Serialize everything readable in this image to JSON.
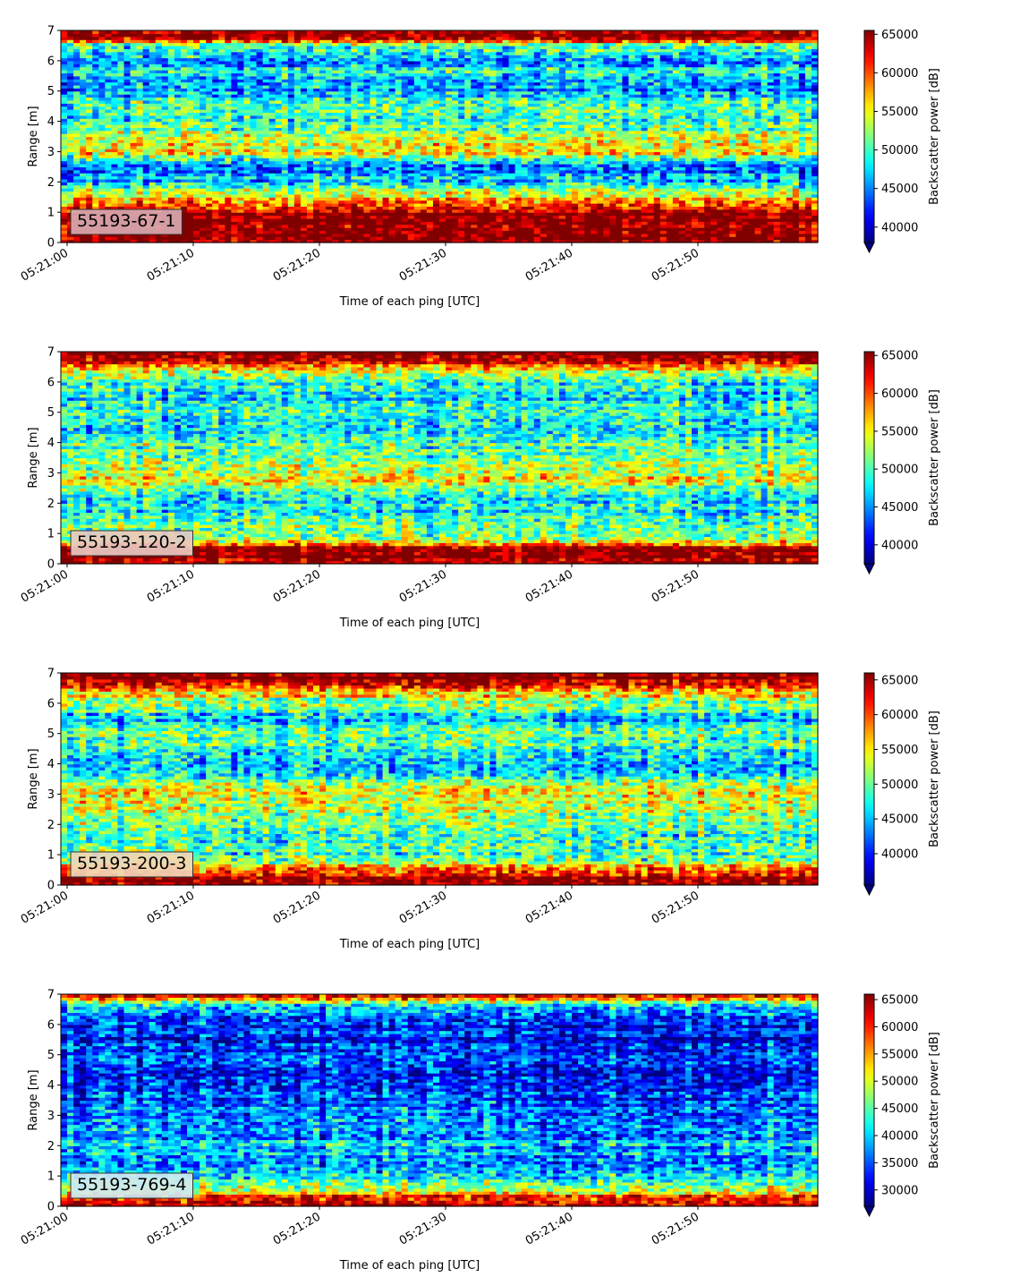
{
  "chart_data": [
    {
      "type": "heatmap",
      "label": "55193-67-1",
      "xlabel": "Time of each ping [UTC]",
      "ylabel": "Range [m]",
      "colorbar_label": "Backscatter power [dB]",
      "colormap": "jet",
      "x_start": "05:21:00",
      "x_end": "05:21:59",
      "x_ticks": [
        "05:21:00",
        "05:21:10",
        "05:21:20",
        "05:21:30",
        "05:21:40",
        "05:21:50"
      ],
      "y_ticks": [
        0,
        1,
        2,
        3,
        4,
        5,
        6,
        7
      ],
      "ylim": [
        0,
        7
      ],
      "clim": [
        38000,
        65500
      ],
      "colorbar_ticks": [
        40000,
        45000,
        50000,
        55000,
        60000,
        65000
      ],
      "colorbar_extend": "min",
      "label_box_color": "#d8a9b0",
      "profile": [
        {
          "range": 0.0,
          "value": 65500
        },
        {
          "range": 1.0,
          "value": 65500
        },
        {
          "range": 1.3,
          "value": 60000
        },
        {
          "range": 1.6,
          "value": 54000
        },
        {
          "range": 2.0,
          "value": 47500
        },
        {
          "range": 2.5,
          "value": 44000
        },
        {
          "range": 3.0,
          "value": 56000
        },
        {
          "range": 3.5,
          "value": 53000
        },
        {
          "range": 4.0,
          "value": 49000
        },
        {
          "range": 4.5,
          "value": 50000
        },
        {
          "range": 5.0,
          "value": 46000
        },
        {
          "range": 5.5,
          "value": 48000
        },
        {
          "range": 6.0,
          "value": 46000
        },
        {
          "range": 6.5,
          "value": 50000
        },
        {
          "range": 6.8,
          "value": 65500
        },
        {
          "range": 7.0,
          "value": 65500
        }
      ]
    },
    {
      "type": "heatmap",
      "label": "55193-120-2",
      "xlabel": "Time of each ping [UTC]",
      "ylabel": "Range [m]",
      "colorbar_label": "Backscatter power [dB]",
      "colormap": "jet",
      "x_start": "05:21:00",
      "x_end": "05:21:59",
      "x_ticks": [
        "05:21:00",
        "05:21:10",
        "05:21:20",
        "05:21:30",
        "05:21:40",
        "05:21:50"
      ],
      "y_ticks": [
        0,
        1,
        2,
        3,
        4,
        5,
        6,
        7
      ],
      "ylim": [
        0,
        7
      ],
      "clim": [
        37500,
        65500
      ],
      "colorbar_ticks": [
        40000,
        45000,
        50000,
        55000,
        60000,
        65000
      ],
      "colorbar_extend": "min",
      "label_box_color": "#e8c9c2",
      "profile": [
        {
          "range": 0.0,
          "value": 65500
        },
        {
          "range": 0.5,
          "value": 65500
        },
        {
          "range": 0.8,
          "value": 52000
        },
        {
          "range": 1.5,
          "value": 49000
        },
        {
          "range": 2.0,
          "value": 47000
        },
        {
          "range": 2.5,
          "value": 52000
        },
        {
          "range": 3.0,
          "value": 55000
        },
        {
          "range": 3.5,
          "value": 50000
        },
        {
          "range": 4.0,
          "value": 51000
        },
        {
          "range": 4.5,
          "value": 45500
        },
        {
          "range": 5.0,
          "value": 51000
        },
        {
          "range": 5.5,
          "value": 46500
        },
        {
          "range": 6.0,
          "value": 48000
        },
        {
          "range": 6.5,
          "value": 56000
        },
        {
          "range": 6.8,
          "value": 65500
        },
        {
          "range": 7.0,
          "value": 65500
        }
      ]
    },
    {
      "type": "heatmap",
      "label": "55193-200-3",
      "xlabel": "Time of each ping [UTC]",
      "ylabel": "Range [m]",
      "colorbar_label": "Backscatter power [dB]",
      "colormap": "jet",
      "x_start": "05:21:00",
      "x_end": "05:21:59",
      "x_ticks": [
        "05:21:00",
        "05:21:10",
        "05:21:20",
        "05:21:30",
        "05:21:40",
        "05:21:50"
      ],
      "y_ticks": [
        0,
        1,
        2,
        3,
        4,
        5,
        6,
        7
      ],
      "ylim": [
        0,
        7
      ],
      "clim": [
        35500,
        66000
      ],
      "colorbar_ticks": [
        40000,
        45000,
        50000,
        55000,
        60000,
        65000
      ],
      "colorbar_extend": "min",
      "label_box_color": "#f0d6b8",
      "profile": [
        {
          "range": 0.0,
          "value": 66000
        },
        {
          "range": 0.4,
          "value": 63000
        },
        {
          "range": 0.8,
          "value": 50000
        },
        {
          "range": 1.5,
          "value": 48000
        },
        {
          "range": 2.0,
          "value": 50000
        },
        {
          "range": 2.5,
          "value": 52000
        },
        {
          "range": 3.0,
          "value": 54500
        },
        {
          "range": 3.5,
          "value": 49000
        },
        {
          "range": 4.0,
          "value": 44500
        },
        {
          "range": 4.5,
          "value": 48500
        },
        {
          "range": 5.0,
          "value": 50000
        },
        {
          "range": 5.5,
          "value": 45500
        },
        {
          "range": 6.0,
          "value": 51000
        },
        {
          "range": 6.5,
          "value": 58000
        },
        {
          "range": 6.8,
          "value": 66000
        },
        {
          "range": 7.0,
          "value": 66000
        }
      ]
    },
    {
      "type": "heatmap",
      "label": "55193-769-4",
      "xlabel": "Time of each ping [UTC]",
      "ylabel": "Range [m]",
      "colorbar_label": "Backscatter power [dB]",
      "colormap": "jet",
      "x_start": "05:21:00",
      "x_end": "05:21:59",
      "x_ticks": [
        "05:21:00",
        "05:21:10",
        "05:21:20",
        "05:21:30",
        "05:21:40",
        "05:21:50"
      ],
      "y_ticks": [
        0,
        1,
        2,
        3,
        4,
        5,
        6,
        7
      ],
      "ylim": [
        0,
        7
      ],
      "clim": [
        27000,
        66000
      ],
      "colorbar_ticks": [
        30000,
        35000,
        40000,
        45000,
        50000,
        55000,
        60000,
        65000
      ],
      "colorbar_extend": "min",
      "label_box_color": "#cfe9f2",
      "profile": [
        {
          "range": 0.0,
          "value": 66000
        },
        {
          "range": 0.3,
          "value": 62000
        },
        {
          "range": 0.5,
          "value": 50000
        },
        {
          "range": 1.0,
          "value": 41000
        },
        {
          "range": 1.5,
          "value": 38000
        },
        {
          "range": 2.0,
          "value": 40000
        },
        {
          "range": 2.5,
          "value": 37000
        },
        {
          "range": 3.0,
          "value": 36000
        },
        {
          "range": 3.5,
          "value": 34500
        },
        {
          "range": 4.0,
          "value": 33500
        },
        {
          "range": 4.5,
          "value": 32500
        },
        {
          "range": 5.0,
          "value": 33000
        },
        {
          "range": 5.5,
          "value": 32000
        },
        {
          "range": 6.0,
          "value": 33500
        },
        {
          "range": 6.5,
          "value": 37000
        },
        {
          "range": 6.8,
          "value": 52000
        },
        {
          "range": 7.0,
          "value": 62000
        }
      ]
    }
  ]
}
